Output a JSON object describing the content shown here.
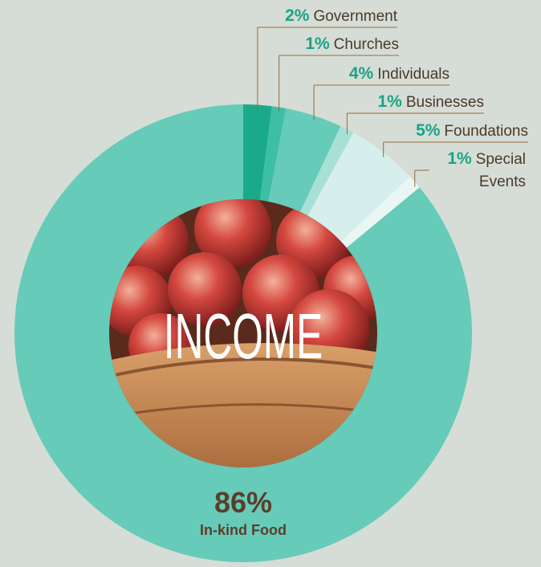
{
  "chart_data": {
    "type": "donut",
    "title": "INCOME",
    "categories": [
      "Government",
      "Churches",
      "Individuals",
      "Businesses",
      "Foundations",
      "Special Events",
      "In-kind Food"
    ],
    "values": [
      2,
      1,
      4,
      1,
      5,
      1,
      86
    ],
    "value_labels": [
      "2%",
      "1%",
      "4%",
      "1%",
      "5%",
      "1%",
      "86%"
    ],
    "colors": [
      "#1aaa8a",
      "#3dbfa6",
      "#66cbb8",
      "#a8e0d6",
      "#d6efec",
      "#e9f6f4",
      "#66cbb8"
    ]
  }
}
